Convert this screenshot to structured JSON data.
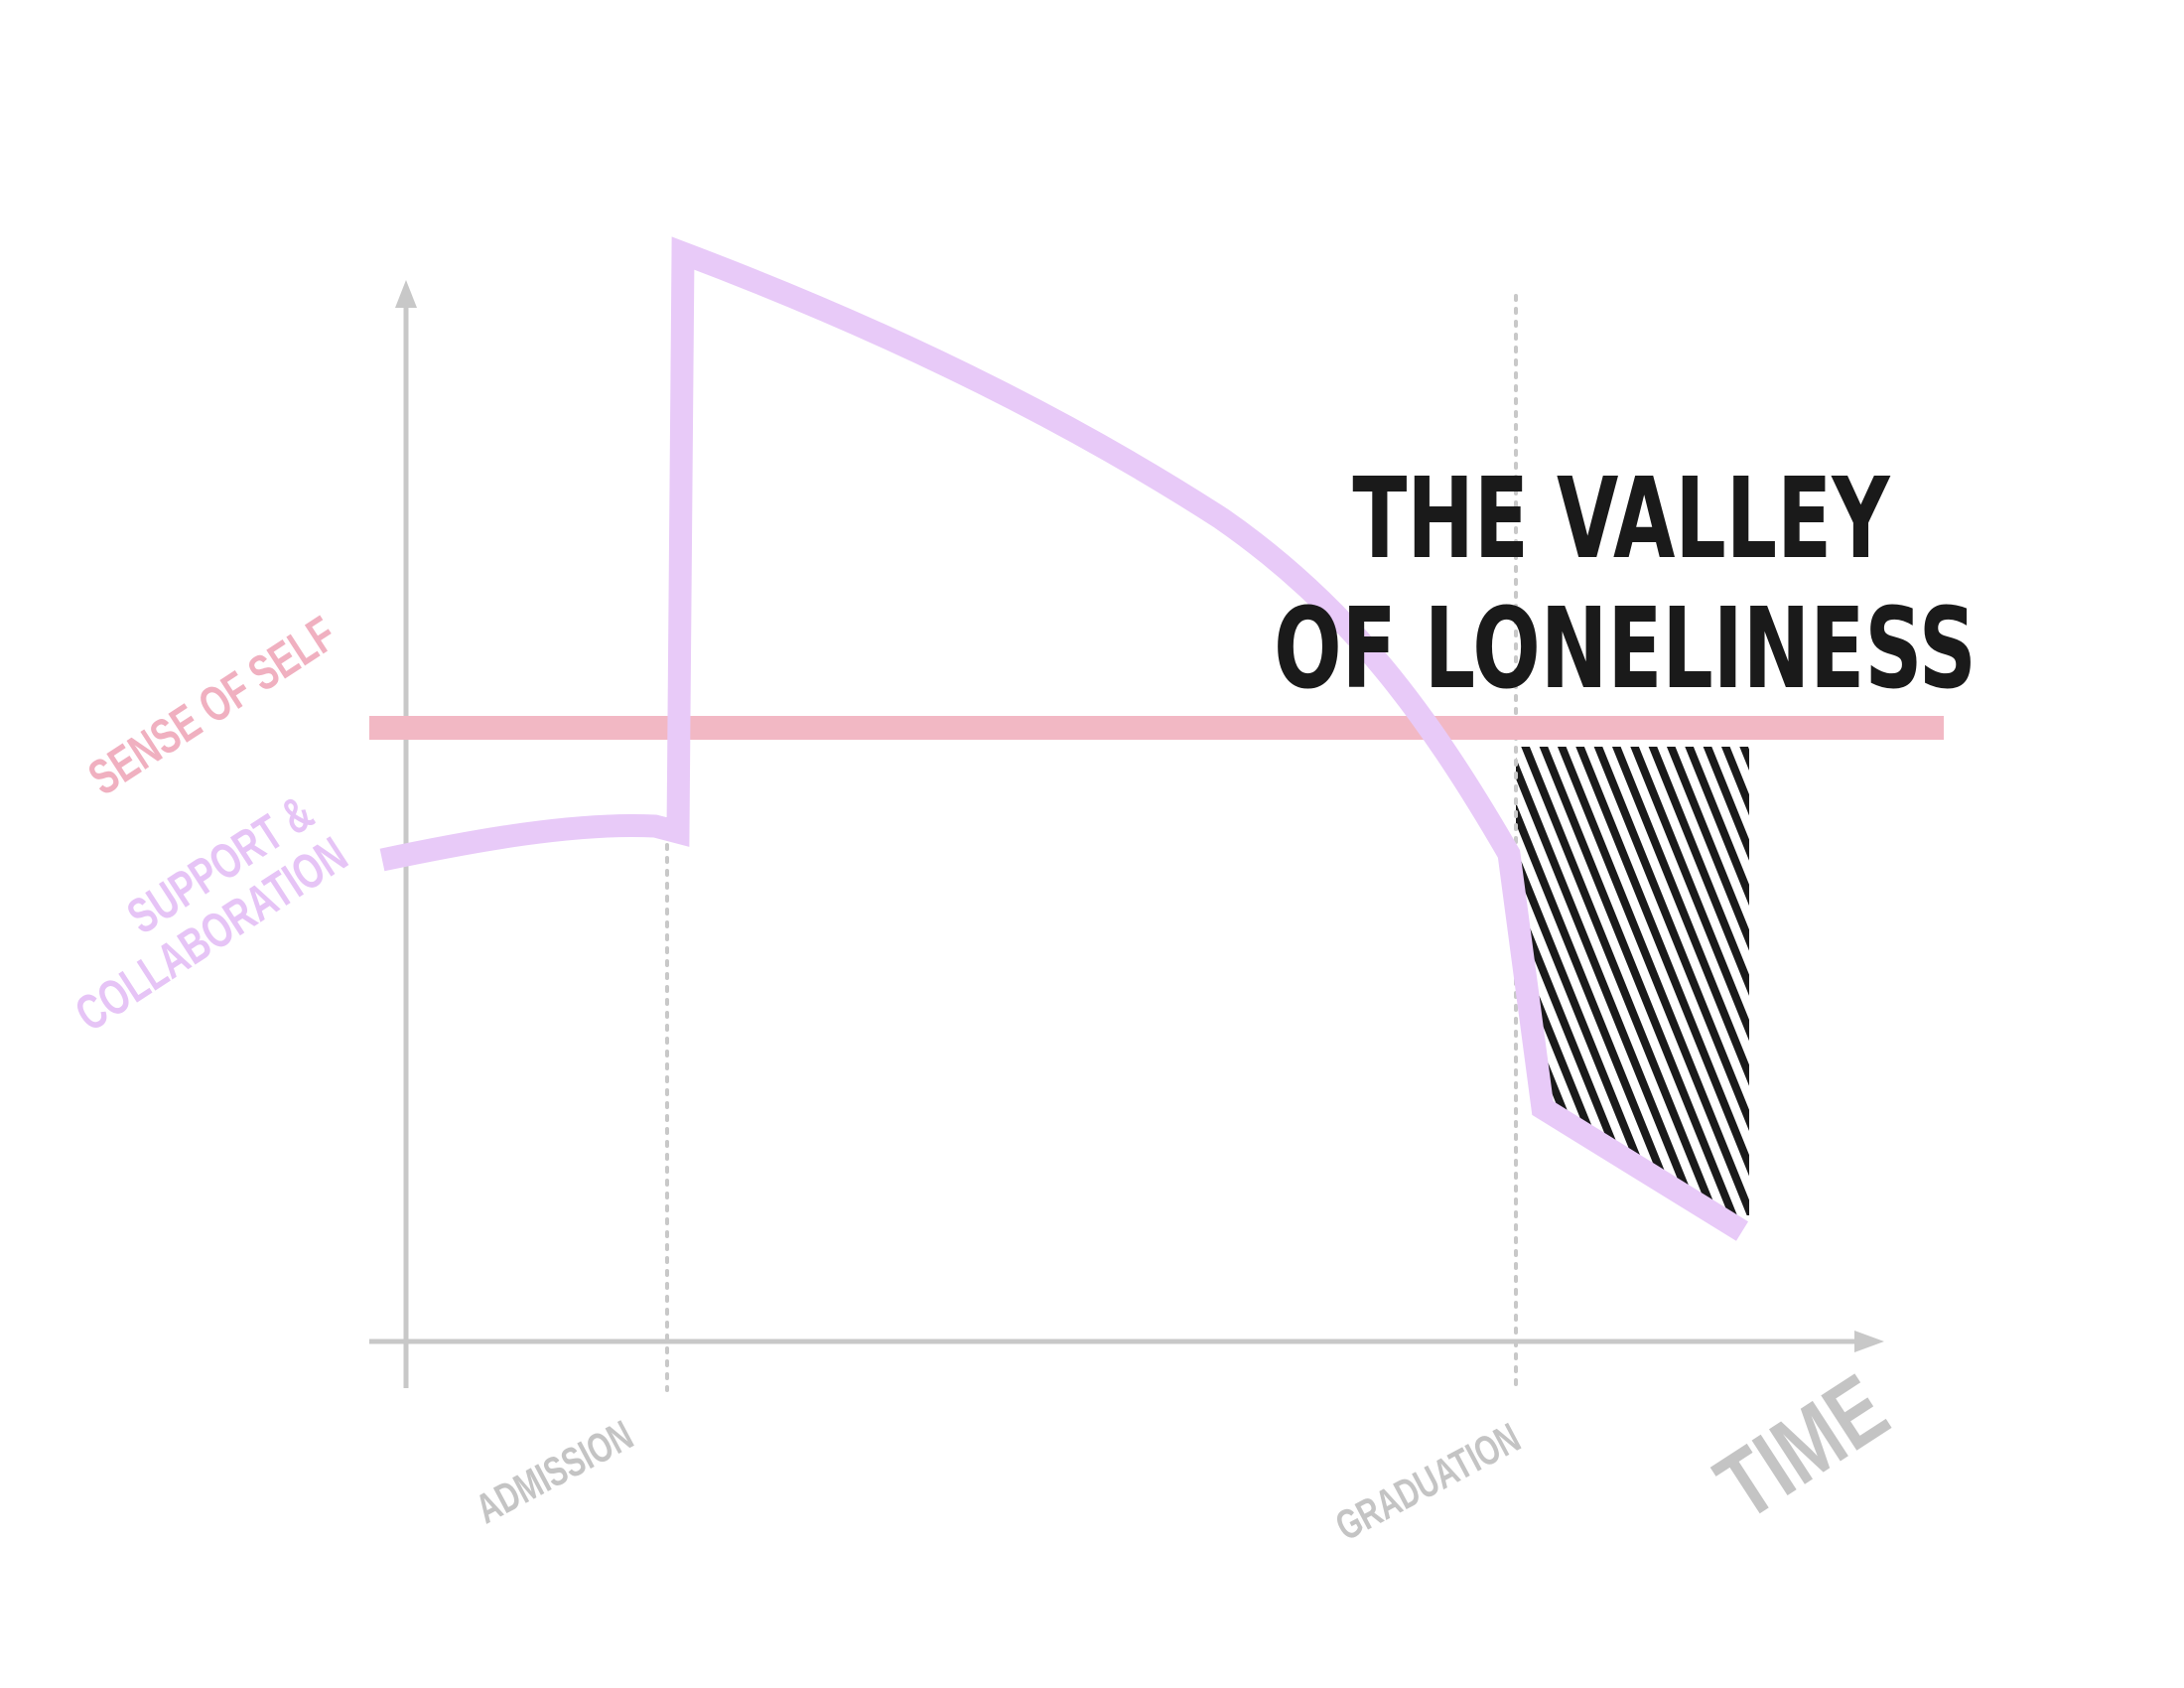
{
  "title": {
    "line1": "THE VALLEY",
    "line2": "OF LONELINESS"
  },
  "axes": {
    "x_label": "TIME",
    "markers": [
      {
        "label": "ADMISSION"
      },
      {
        "label": "GRADUATION"
      }
    ]
  },
  "series": {
    "sense_of_self": {
      "label": "SENSE OF SELF"
    },
    "support": {
      "label_line1": "SUPPORT &",
      "label_line2": "COLLABORATION"
    }
  },
  "colors": {
    "axis": "#c8c8c8",
    "sense_of_self": "#f2b8c4",
    "support": "#e8caf8",
    "hatch": "#1a1a1a",
    "title": "#1a1a1a",
    "marker_label": "#c4c4c4",
    "sense_label": "#f0b0c0",
    "support_label": "#e6c4f6"
  }
}
